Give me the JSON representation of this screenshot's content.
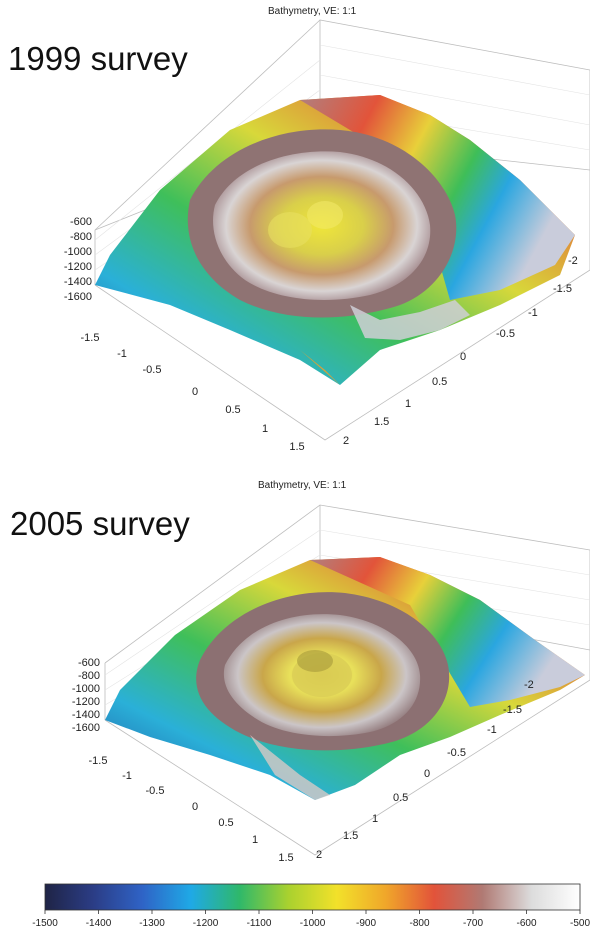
{
  "panels": [
    {
      "plot_title": "Bathymetry, VE: 1:1",
      "survey_label": "1999 survey",
      "z_ticks": [
        "-600",
        "-800",
        "-1000",
        "-1200",
        "-1400",
        "-1600"
      ],
      "x_ticks": [
        "-1.5",
        "-1",
        "-0.5",
        "0",
        "0.5",
        "1",
        "1.5"
      ],
      "y_ticks": [
        "2",
        "1.5",
        "1",
        "0.5",
        "0",
        "-0.5",
        "-1",
        "-1.5",
        "-2"
      ]
    },
    {
      "plot_title": "Bathymetry, VE: 1:1",
      "survey_label": "2005 survey",
      "z_ticks": [
        "-600",
        "-800",
        "-1000",
        "-1200",
        "-1400",
        "-1600"
      ],
      "x_ticks": [
        "-1.5",
        "-1",
        "-0.5",
        "0",
        "0.5",
        "1",
        "1.5"
      ],
      "y_ticks": [
        "2",
        "1.5",
        "1",
        "0.5",
        "0",
        "-0.5",
        "-1",
        "-1.5",
        "-2"
      ]
    }
  ],
  "colorbar": {
    "ticks": [
      "-1500",
      "-1400",
      "-1300",
      "-1200",
      "-1100",
      "-1000",
      "-900",
      "-800",
      "-700",
      "-600",
      "-500"
    ],
    "colors": [
      "#1f2446",
      "#2b3d86",
      "#2f63c6",
      "#1fa9e6",
      "#2fb86a",
      "#a9d12f",
      "#f2e12a",
      "#f0a72a",
      "#e2533a",
      "#b07a74",
      "#dcdcdc",
      "#ffffff"
    ]
  }
}
